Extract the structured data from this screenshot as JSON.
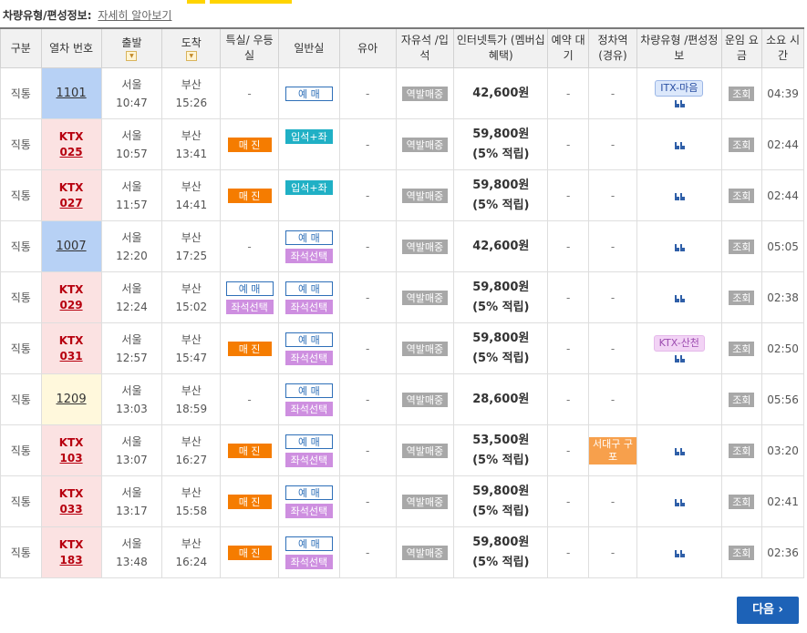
{
  "info": {
    "label": "차량유형/편성정보:",
    "link": "자세히 알아보기"
  },
  "columns": {
    "type": "구분",
    "train_no": "열차 번호",
    "depart": "출발",
    "arrive": "도착",
    "first_class": "특실/ 우등실",
    "standard": "일반실",
    "infant": "유아",
    "free_seat": "자유석 /입석",
    "internet_special": "인터넷특가 (멤버십 혜택)",
    "reserve_wait": "예약 대기",
    "via_station": "정차역 (경유)",
    "vehicle": "차량유형 /편성정보",
    "fare": "운임 요금",
    "duration": "소요 시간"
  },
  "common": {
    "dash": "-",
    "reserve": "예 매",
    "sold_out": "매 진",
    "standing_seat": "입석+좌석",
    "seat_select": "좌석선택",
    "station_sale": "역발매중",
    "lookup": "조회",
    "seat_icon": "seat-icon"
  },
  "rows": [
    {
      "type": "직통",
      "brand": "",
      "num": "1101",
      "style": "blue",
      "from": "서울",
      "dep": "10:47",
      "to": "부산",
      "arr": "15:26",
      "first": "-",
      "std": [
        "reserve"
      ],
      "price": "42,600원",
      "sub": "",
      "via": "-",
      "vehicle": "ITX-마음",
      "dur": "04:39"
    },
    {
      "type": "직통",
      "brand": "KTX",
      "num": "025",
      "style": "pink",
      "from": "서울",
      "dep": "10:57",
      "to": "부산",
      "arr": "13:41",
      "first": "sold",
      "std": [
        "mix"
      ],
      "price": "59,800원",
      "sub": "(5% 적립)",
      "via": "-",
      "vehicle": "",
      "dur": "02:44"
    },
    {
      "type": "직통",
      "brand": "KTX",
      "num": "027",
      "style": "pink",
      "from": "서울",
      "dep": "11:57",
      "to": "부산",
      "arr": "14:41",
      "first": "sold",
      "std": [
        "mix"
      ],
      "price": "59,800원",
      "sub": "(5% 적립)",
      "via": "-",
      "vehicle": "",
      "dur": "02:44"
    },
    {
      "type": "직통",
      "brand": "",
      "num": "1007",
      "style": "blue",
      "from": "서울",
      "dep": "12:20",
      "to": "부산",
      "arr": "17:25",
      "first": "-",
      "std": [
        "reserve",
        "seat"
      ],
      "price": "42,600원",
      "sub": "",
      "via": "-",
      "vehicle": "",
      "dur": "05:05"
    },
    {
      "type": "직통",
      "brand": "KTX",
      "num": "029",
      "style": "pink",
      "from": "서울",
      "dep": "12:24",
      "to": "부산",
      "arr": "15:02",
      "first": "reserveseat",
      "std": [
        "reserve",
        "seat"
      ],
      "price": "59,800원",
      "sub": "(5% 적립)",
      "via": "-",
      "vehicle": "",
      "dur": "02:38"
    },
    {
      "type": "직통",
      "brand": "KTX",
      "num": "031",
      "style": "pink",
      "from": "서울",
      "dep": "12:57",
      "to": "부산",
      "arr": "15:47",
      "first": "sold",
      "std": [
        "reserve",
        "seat"
      ],
      "price": "59,800원",
      "sub": "(5% 적립)",
      "via": "-",
      "vehicle": "KTX-산천",
      "dur": "02:50"
    },
    {
      "type": "직통",
      "brand": "",
      "num": "1209",
      "style": "yel",
      "from": "서울",
      "dep": "13:03",
      "to": "부산",
      "arr": "18:59",
      "first": "-",
      "std": [
        "reserve",
        "seat"
      ],
      "price": "28,600원",
      "sub": "",
      "via": "-",
      "vehicle": "none",
      "dur": "05:56"
    },
    {
      "type": "직통",
      "brand": "KTX",
      "num": "103",
      "style": "pink",
      "from": "서울",
      "dep": "13:07",
      "to": "부산",
      "arr": "16:27",
      "first": "sold",
      "std": [
        "reserve",
        "seat"
      ],
      "price": "53,500원",
      "sub": "(5% 적립)",
      "via": "서대구 구포",
      "vehicle": "",
      "dur": "03:20"
    },
    {
      "type": "직통",
      "brand": "KTX",
      "num": "033",
      "style": "pink",
      "from": "서울",
      "dep": "13:17",
      "to": "부산",
      "arr": "15:58",
      "first": "sold",
      "std": [
        "reserve",
        "seat"
      ],
      "price": "59,800원",
      "sub": "(5% 적립)",
      "via": "-",
      "vehicle": "",
      "dur": "02:41"
    },
    {
      "type": "직통",
      "brand": "KTX",
      "num": "183",
      "style": "pink",
      "from": "서울",
      "dep": "13:48",
      "to": "부산",
      "arr": "16:24",
      "first": "sold",
      "std": [
        "reserve",
        "seat"
      ],
      "price": "59,800원",
      "sub": "(5% 적립)",
      "via": "-",
      "vehicle": "",
      "dur": "02:36"
    }
  ],
  "next_button": "다음 ›",
  "colors": {
    "accent": "#1d62b7",
    "sold": "#f57c00",
    "mix": "#20b0c5",
    "seat": "#ce8fe0",
    "brand": "#b7000f"
  }
}
